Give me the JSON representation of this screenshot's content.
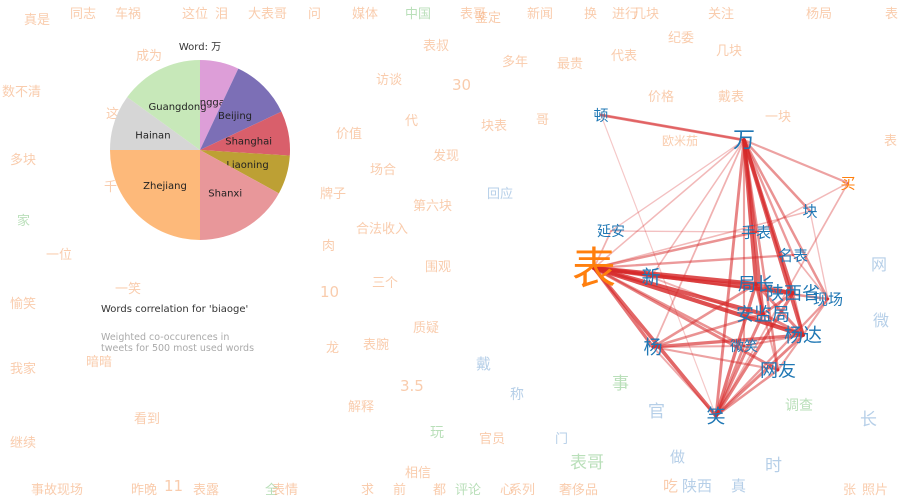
{
  "colors": {
    "cloud_orange": "#f4a26a",
    "cloud_green": "#7fc47f",
    "cloud_blue": "#7aa8d6",
    "node_blue": "#1f77b4",
    "node_orange": "#ff7f0e",
    "edge_red": "#d62728"
  },
  "chart_data": [
    {
      "type": "pie",
      "title": "Word: 万",
      "slices": [
        {
          "label": "Xianggang",
          "value": 7,
          "color": "#dd9ed8"
        },
        {
          "label": "Beijing",
          "value": 11,
          "color": "#7c6fb6"
        },
        {
          "label": "Shanghai",
          "value": 8,
          "color": "#d95f6b"
        },
        {
          "label": "Liaoning",
          "value": 7,
          "color": "#bda034"
        },
        {
          "label": "Shanxi",
          "value": 17,
          "color": "#e8979a"
        },
        {
          "label": "Zhejiang",
          "value": 25,
          "color": "#fdb97a"
        },
        {
          "label": "Hainan",
          "value": 10,
          "color": "#d6d6d6"
        },
        {
          "label": "Guangdong",
          "value": 15,
          "color": "#c7e8b9"
        }
      ]
    },
    {
      "type": "network",
      "title": "Words correlation for 'biaoge'",
      "subtitle_lines": [
        "Weighted co-occurences in",
        "tweets for 500 most used words"
      ],
      "nodes": [
        {
          "id": "wan",
          "label": "万",
          "size": 22,
          "color": "#1f77b4"
        },
        {
          "id": "biao",
          "label": "表",
          "size": 44,
          "color": "#ff7f0e"
        },
        {
          "id": "mai",
          "label": "买",
          "size": 15,
          "color": "#ff7f0e"
        },
        {
          "id": "dun",
          "label": "顿",
          "size": 15,
          "color": "#1f77b4"
        },
        {
          "id": "kuai",
          "label": "块",
          "size": 15,
          "color": "#1f77b4"
        },
        {
          "id": "yanan",
          "label": "延安",
          "size": 14,
          "color": "#1f77b4"
        },
        {
          "id": "shoubiao",
          "label": "手表",
          "size": 15,
          "color": "#1f77b4"
        },
        {
          "id": "mingbiao",
          "label": "名表",
          "size": 15,
          "color": "#1f77b4"
        },
        {
          "id": "xin",
          "label": "新",
          "size": 19,
          "color": "#1f77b4"
        },
        {
          "id": "juzhang",
          "label": "局长",
          "size": 18,
          "color": "#1f77b4"
        },
        {
          "id": "shanxisheng",
          "label": "陕西省",
          "size": 18,
          "color": "#1f77b4"
        },
        {
          "id": "xianchang",
          "label": "现场",
          "size": 15,
          "color": "#1f77b4"
        },
        {
          "id": "anjianju",
          "label": "安监局",
          "size": 18,
          "color": "#1f77b4"
        },
        {
          "id": "yangda",
          "label": "杨达",
          "size": 19,
          "color": "#1f77b4"
        },
        {
          "id": "yang",
          "label": "杨",
          "size": 19,
          "color": "#1f77b4"
        },
        {
          "id": "weixiao",
          "label": "微笑",
          "size": 14,
          "color": "#1f77b4"
        },
        {
          "id": "wangyou",
          "label": "网友",
          "size": 18,
          "color": "#1f77b4"
        },
        {
          "id": "xiao",
          "label": "笑",
          "size": 19,
          "color": "#1f77b4"
        }
      ],
      "edges": [
        {
          "source": "biao",
          "target": "juzhang",
          "weight": 0.95
        },
        {
          "source": "biao",
          "target": "shanxisheng",
          "weight": 0.9
        },
        {
          "source": "biao",
          "target": "anjianju",
          "weight": 0.9
        },
        {
          "source": "biao",
          "target": "yangda",
          "weight": 0.95
        },
        {
          "source": "biao",
          "target": "xiao",
          "weight": 0.8
        },
        {
          "source": "biao",
          "target": "yang",
          "weight": 0.7
        },
        {
          "source": "biao",
          "target": "wangyou",
          "weight": 0.6
        },
        {
          "source": "biao",
          "target": "shoubiao",
          "weight": 0.5
        },
        {
          "source": "biao",
          "target": "mingbiao",
          "weight": 0.45
        },
        {
          "source": "biao",
          "target": "xianchang",
          "weight": 0.5
        },
        {
          "source": "biao",
          "target": "weixiao",
          "weight": 0.5
        },
        {
          "source": "biao",
          "target": "xin",
          "weight": 0.4
        },
        {
          "source": "biao",
          "target": "wan",
          "weight": 0.25
        },
        {
          "source": "biao",
          "target": "yanan",
          "weight": 0.3
        },
        {
          "source": "biao",
          "target": "kuai",
          "weight": 0.25
        },
        {
          "source": "wan",
          "target": "dun",
          "weight": 0.6
        },
        {
          "source": "wan",
          "target": "mai",
          "weight": 0.4
        },
        {
          "source": "wan",
          "target": "kuai",
          "weight": 0.5
        },
        {
          "source": "wan",
          "target": "juzhang",
          "weight": 0.85
        },
        {
          "source": "wan",
          "target": "shanxisheng",
          "weight": 0.8
        },
        {
          "source": "wan",
          "target": "anjianju",
          "weight": 0.75
        },
        {
          "source": "wan",
          "target": "yangda",
          "weight": 0.85
        },
        {
          "source": "wan",
          "target": "shoubiao",
          "weight": 0.5
        },
        {
          "source": "wan",
          "target": "mingbiao",
          "weight": 0.45
        },
        {
          "source": "wan",
          "target": "xiao",
          "weight": 0.6
        },
        {
          "source": "wan",
          "target": "wangyou",
          "weight": 0.5
        },
        {
          "source": "wan",
          "target": "xianchang",
          "weight": 0.5
        },
        {
          "source": "wan",
          "target": "weixiao",
          "weight": 0.4
        },
        {
          "source": "wan",
          "target": "yang",
          "weight": 0.3
        },
        {
          "source": "wan",
          "target": "yanan",
          "weight": 0.2
        },
        {
          "source": "wan",
          "target": "xin",
          "weight": 0.25
        },
        {
          "source": "dun",
          "target": "xiao",
          "weight": 0.15
        },
        {
          "source": "dun",
          "target": "wan",
          "weight": 0.3
        },
        {
          "source": "mai",
          "target": "xiao",
          "weight": 0.3
        },
        {
          "source": "mai",
          "target": "shoubiao",
          "weight": 0.25
        },
        {
          "source": "yang",
          "target": "yangda",
          "weight": 0.7
        },
        {
          "source": "yang",
          "target": "juzhang",
          "weight": 0.5
        },
        {
          "source": "yang",
          "target": "anjianju",
          "weight": 0.5
        },
        {
          "source": "yang",
          "target": "wangyou",
          "weight": 0.4
        },
        {
          "source": "yang",
          "target": "weixiao",
          "weight": 0.35
        },
        {
          "source": "yang",
          "target": "xiao",
          "weight": 0.35
        },
        {
          "source": "xiao",
          "target": "juzhang",
          "weight": 0.7
        },
        {
          "source": "xiao",
          "target": "shanxisheng",
          "weight": 0.65
        },
        {
          "source": "xiao",
          "target": "anjianju",
          "weight": 0.6
        },
        {
          "source": "xiao",
          "target": "yangda",
          "weight": 0.6
        },
        {
          "source": "xiao",
          "target": "wangyou",
          "weight": 0.5
        },
        {
          "source": "xiao",
          "target": "weixiao",
          "weight": 0.55
        },
        {
          "source": "xiao",
          "target": "xianchang",
          "weight": 0.45
        },
        {
          "source": "juzhang",
          "target": "shanxisheng",
          "weight": 0.6
        },
        {
          "source": "juzhang",
          "target": "anjianju",
          "weight": 0.65
        },
        {
          "source": "juzhang",
          "target": "yangda",
          "weight": 0.6
        },
        {
          "source": "shanxisheng",
          "target": "anjianju",
          "weight": 0.6
        },
        {
          "source": "anjianju",
          "target": "yangda",
          "weight": 0.6
        },
        {
          "source": "shanxisheng",
          "target": "yangda",
          "weight": 0.5
        },
        {
          "source": "xianchang",
          "target": "yangda",
          "weight": 0.4
        },
        {
          "source": "wangyou",
          "target": "yangda",
          "weight": 0.4
        },
        {
          "source": "weixiao",
          "target": "yangda",
          "weight": 0.4
        },
        {
          "source": "wangyou",
          "target": "juzhang",
          "weight": 0.35
        },
        {
          "source": "xin",
          "target": "juzhang",
          "weight": 0.35
        },
        {
          "source": "xin",
          "target": "yangda",
          "weight": 0.3
        },
        {
          "source": "mingbiao",
          "target": "xianchang",
          "weight": 0.3
        },
        {
          "source": "kuai",
          "target": "xianchang",
          "weight": 0.2
        },
        {
          "source": "yanan",
          "target": "shoubiao",
          "weight": 0.2
        }
      ]
    }
  ],
  "word_cloud": [
    {
      "text": "真是",
      "tone": "orange"
    },
    {
      "text": "同志",
      "tone": "orange"
    },
    {
      "text": "车祸",
      "tone": "orange"
    },
    {
      "text": "这位",
      "tone": "orange"
    },
    {
      "text": "泪",
      "tone": "orange"
    },
    {
      "text": "大表哥",
      "tone": "orange"
    },
    {
      "text": "问",
      "tone": "orange"
    },
    {
      "text": "媒体",
      "tone": "orange"
    },
    {
      "text": "中国",
      "tone": "green"
    },
    {
      "text": "表哥",
      "tone": "orange"
    },
    {
      "text": "鉴定",
      "tone": "orange"
    },
    {
      "text": "新闻",
      "tone": "orange"
    },
    {
      "text": "换",
      "tone": "orange"
    },
    {
      "text": "进行",
      "tone": "orange"
    },
    {
      "text": "几块",
      "tone": "orange"
    },
    {
      "text": "关注",
      "tone": "orange"
    },
    {
      "text": "杨局",
      "tone": "orange"
    },
    {
      "text": "表",
      "tone": "orange"
    },
    {
      "text": "成为",
      "tone": "orange"
    },
    {
      "text": "表叔",
      "tone": "orange"
    },
    {
      "text": "纪委",
      "tone": "orange"
    },
    {
      "text": "几块",
      "tone": "orange"
    },
    {
      "text": "数不清",
      "tone": "orange"
    },
    {
      "text": "访谈",
      "tone": "orange"
    },
    {
      "text": "30",
      "tone": "orange"
    },
    {
      "text": "多年",
      "tone": "orange"
    },
    {
      "text": "最贵",
      "tone": "orange"
    },
    {
      "text": "代表",
      "tone": "orange"
    },
    {
      "text": "价格",
      "tone": "orange"
    },
    {
      "text": "戴表",
      "tone": "orange"
    },
    {
      "text": "这",
      "tone": "orange"
    },
    {
      "text": "代",
      "tone": "orange"
    },
    {
      "text": "块表",
      "tone": "orange"
    },
    {
      "text": "哥",
      "tone": "orange"
    },
    {
      "text": "一块",
      "tone": "orange"
    },
    {
      "text": "多块",
      "tone": "orange"
    },
    {
      "text": "价值",
      "tone": "orange"
    },
    {
      "text": "发现",
      "tone": "orange"
    },
    {
      "text": "欧米茄",
      "tone": "orange"
    },
    {
      "text": "表",
      "tone": "orange"
    },
    {
      "text": "场合",
      "tone": "orange"
    },
    {
      "text": "千",
      "tone": "orange"
    },
    {
      "text": "牌子",
      "tone": "orange"
    },
    {
      "text": "回应",
      "tone": "blue"
    },
    {
      "text": "第六块",
      "tone": "orange"
    },
    {
      "text": "家",
      "tone": "green"
    },
    {
      "text": "合法收入",
      "tone": "orange"
    },
    {
      "text": "肉",
      "tone": "orange"
    },
    {
      "text": "一位",
      "tone": "orange"
    },
    {
      "text": "围观",
      "tone": "orange"
    },
    {
      "text": "网",
      "tone": "blue"
    },
    {
      "text": "三个",
      "tone": "orange"
    },
    {
      "text": "一笑",
      "tone": "orange"
    },
    {
      "text": "10",
      "tone": "orange"
    },
    {
      "text": "愉笑",
      "tone": "orange"
    },
    {
      "text": "质疑",
      "tone": "orange"
    },
    {
      "text": "微",
      "tone": "blue"
    },
    {
      "text": "表腕",
      "tone": "orange"
    },
    {
      "text": "龙",
      "tone": "orange"
    },
    {
      "text": "暗暗",
      "tone": "orange"
    },
    {
      "text": "戴",
      "tone": "blue"
    },
    {
      "text": "我家",
      "tone": "orange"
    },
    {
      "text": "3.5",
      "tone": "orange"
    },
    {
      "text": "事",
      "tone": "green"
    },
    {
      "text": "称",
      "tone": "blue"
    },
    {
      "text": "解释",
      "tone": "orange"
    },
    {
      "text": "官",
      "tone": "blue"
    },
    {
      "text": "调查",
      "tone": "green"
    },
    {
      "text": "看到",
      "tone": "orange"
    },
    {
      "text": "长",
      "tone": "blue"
    },
    {
      "text": "继续",
      "tone": "orange"
    },
    {
      "text": "玩",
      "tone": "green"
    },
    {
      "text": "官员",
      "tone": "orange"
    },
    {
      "text": "门",
      "tone": "blue"
    },
    {
      "text": "做",
      "tone": "blue"
    },
    {
      "text": "相信",
      "tone": "orange"
    },
    {
      "text": "表哥",
      "tone": "green"
    },
    {
      "text": "时",
      "tone": "blue"
    },
    {
      "text": "事故现场",
      "tone": "orange"
    },
    {
      "text": "昨晚",
      "tone": "orange"
    },
    {
      "text": "11",
      "tone": "orange"
    },
    {
      "text": "表露",
      "tone": "orange"
    },
    {
      "text": "全",
      "tone": "green"
    },
    {
      "text": "表情",
      "tone": "orange"
    },
    {
      "text": "求",
      "tone": "orange"
    },
    {
      "text": "前",
      "tone": "orange"
    },
    {
      "text": "都",
      "tone": "orange"
    },
    {
      "text": "评论",
      "tone": "green"
    },
    {
      "text": "心",
      "tone": "orange"
    },
    {
      "text": "系列",
      "tone": "orange"
    },
    {
      "text": "奢侈品",
      "tone": "orange"
    },
    {
      "text": "吃",
      "tone": "orange"
    },
    {
      "text": "陕西",
      "tone": "blue"
    },
    {
      "text": "真",
      "tone": "blue"
    },
    {
      "text": "张",
      "tone": "orange"
    },
    {
      "text": "照片",
      "tone": "orange"
    }
  ]
}
